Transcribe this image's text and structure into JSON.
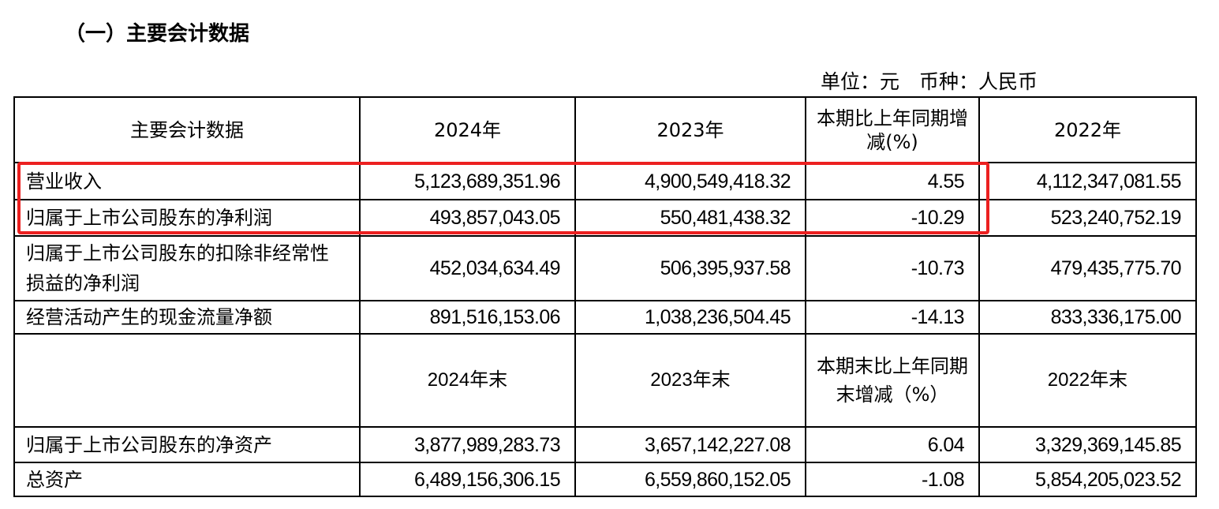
{
  "title": "（一）主要会计数据",
  "unit": "单位：元　币种：人民币",
  "header": [
    "主要会计数据",
    "2024年",
    "2023年",
    "本期比上年同期增减(%)",
    "2022年"
  ],
  "rows1": [
    {
      "label": "营业收入",
      "v": [
        "5,123,689,351.96",
        "4,900,549,418.32",
        "4.55",
        "4,112,347,081.55"
      ]
    },
    {
      "label": "归属于上市公司股东的净利润",
      "v": [
        "493,857,043.05",
        "550,481,438.32",
        "-10.29",
        "523,240,752.19"
      ]
    },
    {
      "label": "归属于上市公司股东的扣除非经常性损益的净利润",
      "v": [
        "452,034,634.49",
        "506,395,937.58",
        "-10.73",
        "479,435,775.70"
      ]
    },
    {
      "label": "经营活动产生的现金流量净额",
      "v": [
        "891,516,153.06",
        "1,038,236,504.45",
        "-14.13",
        "833,336,175.00"
      ]
    }
  ],
  "header2": [
    "",
    "2024年末",
    "2023年末",
    "本期末比上年同期末增减（%）",
    "2022年末"
  ],
  "rows2": [
    {
      "label": "归属于上市公司股东的净资产",
      "v": [
        "3,877,989,283.73",
        "3,657,142,227.08",
        "6.04",
        "3,329,369,145.85"
      ]
    },
    {
      "label": "总资产",
      "v": [
        "6,489,156,306.15",
        "6,559,860,152.05",
        "-1.08",
        "5,854,205,023.52"
      ]
    }
  ],
  "highlight_color": "#ec2020"
}
